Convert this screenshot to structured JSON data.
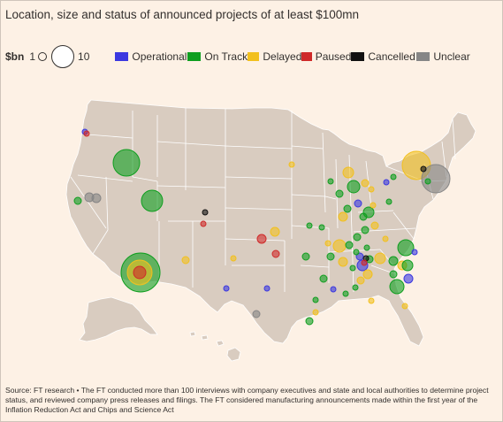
{
  "title": "Location, size and status of announced projects of at least $100mn",
  "size_legend": {
    "unit": "$bn",
    "min_label": "1",
    "max_label": "10"
  },
  "status_legend": [
    {
      "label": "Operational",
      "color": "#3b38e0"
    },
    {
      "label": "On Track",
      "color": "#0f9e1f"
    },
    {
      "label": "Delayed",
      "color": "#f2c01e"
    },
    {
      "label": "Paused",
      "color": "#cf2a2a"
    },
    {
      "label": "Cancelled",
      "color": "#111111"
    },
    {
      "label": "Unclear",
      "color": "#868686"
    }
  ],
  "map": {
    "land_color": "#d9ccc0",
    "border_color": "#ffffff"
  },
  "source": "Source: FT research • The FT conducted more than 100 interviews with company executives and state and local authorities to determine project status, and reviewed company press releases and filings. The FT considered manufacturing announcements made within the first year of the Inflation Reduction Act and Chips and Science Act"
}
